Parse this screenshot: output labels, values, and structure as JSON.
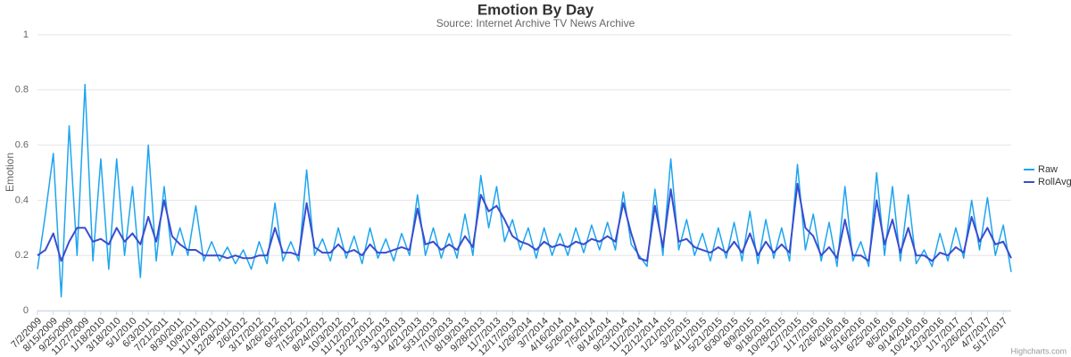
{
  "chart_data": {
    "type": "line",
    "title": "Emotion By Day",
    "subtitle": "Source: Internet Archive TV News Archive",
    "y_label": "Emotion",
    "credits": "Highcharts.com",
    "grid": true,
    "legend": "right",
    "ylim": [
      0,
      1
    ],
    "yticks": [
      0,
      0.2,
      0.4,
      0.6,
      0.8,
      1
    ],
    "categories": [
      "7/2/2009",
      null,
      "8/15/2009",
      null,
      "9/25/2009",
      null,
      "11/27/2009",
      null,
      "1/18/2010",
      null,
      "3/18/2010",
      null,
      "5/1/2010",
      null,
      "6/3/2011",
      null,
      "7/21/2011",
      null,
      "8/30/2011",
      null,
      "10/9/2011",
      null,
      "11/18/2011",
      null,
      "12/28/2011",
      null,
      "2/6/2012",
      null,
      "3/17/2012",
      null,
      "4/26/2012",
      null,
      "6/5/2012",
      null,
      "7/15/2012",
      null,
      "8/24/2012",
      null,
      "10/3/2012",
      null,
      "11/12/2012",
      null,
      "12/22/2012",
      null,
      "1/31/2013",
      null,
      "3/12/2013",
      null,
      "4/21/2013",
      null,
      "5/31/2013",
      null,
      "7/10/2013",
      null,
      "8/19/2013",
      null,
      "9/28/2013",
      null,
      "11/7/2013",
      null,
      "12/17/2013",
      null,
      "1/26/2014",
      null,
      "3/7/2014",
      null,
      "4/16/2014",
      null,
      "5/26/2014",
      null,
      "7/5/2014",
      null,
      "8/14/2014",
      null,
      "9/23/2014",
      null,
      "11/2/2014",
      null,
      "12/12/2014",
      null,
      "1/21/2015",
      null,
      "3/2/2015",
      null,
      "4/11/2015",
      null,
      "5/21/2015",
      null,
      "6/30/2015",
      null,
      "8/9/2015",
      null,
      "9/18/2015",
      null,
      "10/28/2015",
      null,
      "12/7/2015",
      null,
      "1/17/2016",
      null,
      "2/26/2016",
      null,
      "4/6/2016",
      null,
      "5/16/2016",
      null,
      "6/25/2016",
      null,
      "8/5/2016",
      null,
      "9/14/2016",
      null,
      "10/24/2016",
      null,
      "12/3/2016",
      null,
      "1/17/2017",
      null,
      "2/26/2017",
      null,
      "4/7/2017",
      null,
      "5/17/2017",
      null
    ],
    "series": [
      {
        "name": "Raw",
        "color": "#1ea5ef",
        "width": 1.5,
        "values": [
          0.15,
          0.35,
          0.57,
          0.05,
          0.67,
          0.2,
          0.82,
          0.18,
          0.55,
          0.15,
          0.55,
          0.2,
          0.45,
          0.12,
          0.6,
          0.18,
          0.45,
          0.2,
          0.3,
          0.2,
          0.38,
          0.18,
          0.25,
          0.18,
          0.23,
          0.17,
          0.22,
          0.15,
          0.25,
          0.17,
          0.39,
          0.18,
          0.25,
          0.18,
          0.51,
          0.2,
          0.26,
          0.18,
          0.3,
          0.19,
          0.27,
          0.17,
          0.3,
          0.19,
          0.26,
          0.18,
          0.28,
          0.2,
          0.42,
          0.2,
          0.3,
          0.19,
          0.28,
          0.19,
          0.35,
          0.2,
          0.49,
          0.3,
          0.45,
          0.25,
          0.33,
          0.22,
          0.3,
          0.19,
          0.3,
          0.2,
          0.28,
          0.2,
          0.3,
          0.21,
          0.31,
          0.22,
          0.32,
          0.22,
          0.43,
          0.24,
          0.2,
          0.16,
          0.44,
          0.2,
          0.55,
          0.22,
          0.33,
          0.2,
          0.28,
          0.18,
          0.3,
          0.19,
          0.32,
          0.18,
          0.36,
          0.17,
          0.33,
          0.19,
          0.3,
          0.18,
          0.53,
          0.22,
          0.35,
          0.18,
          0.32,
          0.16,
          0.45,
          0.18,
          0.25,
          0.16,
          0.5,
          0.2,
          0.45,
          0.18,
          0.42,
          0.17,
          0.22,
          0.16,
          0.28,
          0.18,
          0.3,
          0.19,
          0.4,
          0.22,
          0.41,
          0.2,
          0.31,
          0.14
        ]
      },
      {
        "name": "RollAvg",
        "color": "#3a4dcf",
        "width": 2,
        "values": [
          0.2,
          0.22,
          0.28,
          0.18,
          0.25,
          0.3,
          0.3,
          0.25,
          0.26,
          0.24,
          0.3,
          0.25,
          0.28,
          0.24,
          0.34,
          0.25,
          0.4,
          0.27,
          0.24,
          0.22,
          0.22,
          0.2,
          0.2,
          0.2,
          0.19,
          0.2,
          0.19,
          0.19,
          0.2,
          0.2,
          0.3,
          0.21,
          0.21,
          0.2,
          0.39,
          0.23,
          0.21,
          0.21,
          0.24,
          0.21,
          0.22,
          0.2,
          0.24,
          0.21,
          0.21,
          0.22,
          0.23,
          0.22,
          0.37,
          0.24,
          0.25,
          0.22,
          0.24,
          0.22,
          0.27,
          0.23,
          0.42,
          0.36,
          0.38,
          0.33,
          0.27,
          0.25,
          0.24,
          0.22,
          0.25,
          0.23,
          0.24,
          0.23,
          0.25,
          0.24,
          0.26,
          0.25,
          0.27,
          0.25,
          0.39,
          0.28,
          0.19,
          0.18,
          0.38,
          0.23,
          0.44,
          0.25,
          0.26,
          0.23,
          0.22,
          0.21,
          0.23,
          0.21,
          0.25,
          0.21,
          0.28,
          0.2,
          0.25,
          0.21,
          0.24,
          0.21,
          0.46,
          0.3,
          0.27,
          0.2,
          0.23,
          0.19,
          0.33,
          0.2,
          0.2,
          0.18,
          0.4,
          0.24,
          0.33,
          0.21,
          0.3,
          0.2,
          0.2,
          0.18,
          0.21,
          0.2,
          0.23,
          0.21,
          0.34,
          0.25,
          0.3,
          0.24,
          0.25,
          0.19
        ]
      }
    ]
  }
}
